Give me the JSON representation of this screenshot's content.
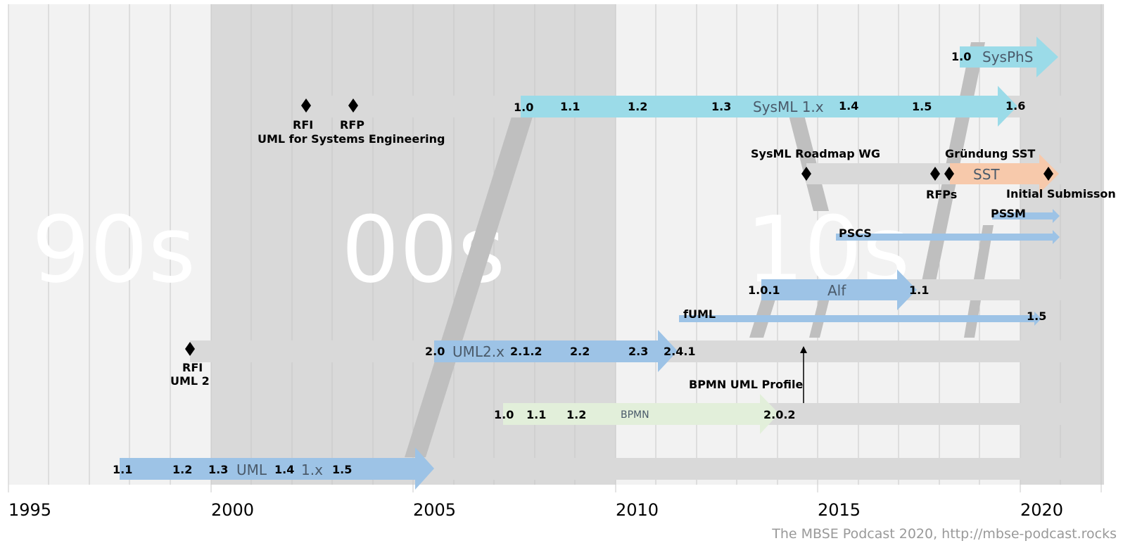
{
  "colors": {
    "uml": "#9dc3e6",
    "sysml": "#9bdbe8",
    "sst": "#f7c9ab",
    "bpmn": "#e2efda",
    "track": "#d9d9d9",
    "band_dark": "#d9d9d9",
    "band_light": "#f2f2f2",
    "diamond": "#000000"
  },
  "axis": {
    "years": [
      "1995",
      "2000",
      "2005",
      "2010",
      "2015",
      "2020"
    ]
  },
  "decades": [
    "90s",
    "00s",
    "10s"
  ],
  "tracks": {
    "sysphs": {
      "name": "SysPhS",
      "versions": [
        "1.0"
      ]
    },
    "sysml": {
      "name": "SysML 1.x",
      "versions": [
        "1.0",
        "1.1",
        "1.2",
        "1.3",
        "1.4",
        "1.5",
        "1.6"
      ],
      "rfi": "RFI",
      "rfp": "RFP",
      "caption": "UML for Systems Engineering"
    },
    "sst": {
      "name": "SST",
      "roadmap": "SysML Roadmap WG",
      "rfps": "RFPs",
      "founding": "Gründung SST",
      "initial": "Initial Submisson"
    },
    "pssm": {
      "name": "PSSM"
    },
    "pscs": {
      "name": "PSCS"
    },
    "alf": {
      "name": "Alf",
      "versions": [
        "1.0.1",
        "1.1"
      ]
    },
    "fuml": {
      "name": "fUML",
      "versions": [
        "1.5"
      ]
    },
    "uml2": {
      "name": "UML2.x",
      "versions": [
        "2.0",
        "2.1.2",
        "2.2",
        "2.3",
        "2.4.1"
      ],
      "rfi": "RFI",
      "caption": "UML 2"
    },
    "bpmn_profile": {
      "name": "BPMN UML Profile"
    },
    "bpmn": {
      "name": "BPMN",
      "versions": [
        "1.0",
        "1.1",
        "1.2",
        "2.0.2"
      ]
    },
    "uml1": {
      "name": "UML",
      "name2": "1.x",
      "versions": [
        "1.1",
        "1.2",
        "1.3",
        "1.4",
        "1.5"
      ]
    }
  },
  "credit": "The MBSE Podcast 2020, http://mbse-podcast.rocks"
}
